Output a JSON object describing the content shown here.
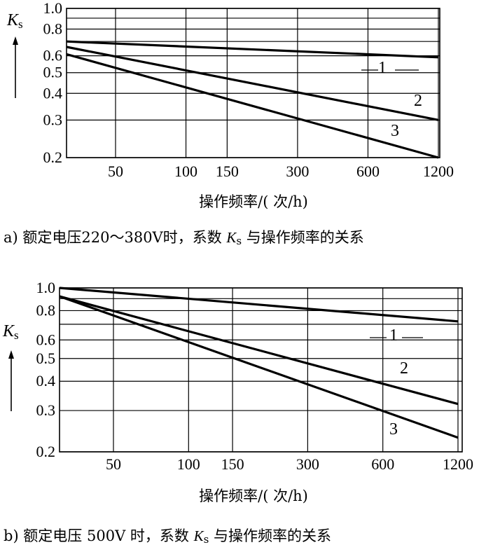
{
  "chart_data": [
    {
      "type": "line",
      "panel": "a",
      "caption": "a) 额定电压220～380V时，系数 Ks 与操作频率的关系",
      "caption_prefix": "a) 额定电压220～380V时，系数 ",
      "caption_suffix": " 与操作频率的关系",
      "ylabel_main": "K",
      "ylabel_sub": "s",
      "xlabel": "操作频率/( 次/h)",
      "x_scale": "log",
      "y_scale": "log",
      "x_ticks": [
        50,
        100,
        150,
        300,
        600,
        1200
      ],
      "x_tick_labels": [
        "50",
        "100",
        "150",
        "300",
        "600",
        "1200"
      ],
      "y_ticks": [
        0.2,
        0.3,
        0.4,
        0.5,
        0.6,
        0.8,
        1.0
      ],
      "y_tick_labels": [
        "0.2",
        "0.3",
        "0.4",
        "0.5",
        "0.6",
        "0.8",
        "1.0"
      ],
      "grid": true,
      "series": [
        {
          "name": "1",
          "x": [
            27,
            1200
          ],
          "values": [
            0.7,
            0.59
          ]
        },
        {
          "name": "2",
          "x": [
            27,
            1200
          ],
          "values": [
            0.66,
            0.3
          ]
        },
        {
          "name": "3",
          "x": [
            27,
            1200
          ],
          "values": [
            0.61,
            0.2
          ]
        }
      ]
    },
    {
      "type": "line",
      "panel": "b",
      "caption": "b) 额定电压 500V 时，系数 Ks 与操作频率的关系",
      "caption_prefix": "b) 额定电压 500V 时，系数 ",
      "caption_suffix": " 与操作频率的关系",
      "ylabel_main": "K",
      "ylabel_sub": "s",
      "xlabel": "操作频率/( 次/h)",
      "x_scale": "log",
      "y_scale": "log",
      "x_ticks": [
        50,
        100,
        150,
        300,
        600,
        1200
      ],
      "x_tick_labels": [
        "50",
        "100",
        "150",
        "300",
        "600",
        "1200"
      ],
      "y_ticks": [
        0.2,
        0.3,
        0.4,
        0.5,
        0.6,
        0.8,
        1.0
      ],
      "y_tick_labels": [
        "0.2",
        "0.3",
        "0.4",
        "0.5",
        "0.6",
        "0.8",
        "1.0"
      ],
      "grid": true,
      "series": [
        {
          "name": "1",
          "x": [
            24,
            1200
          ],
          "values": [
            1.0,
            0.72
          ]
        },
        {
          "name": "2",
          "x": [
            24,
            1200
          ],
          "values": [
            0.92,
            0.32
          ]
        },
        {
          "name": "3",
          "x": [
            24,
            1200
          ],
          "values": [
            0.92,
            0.23
          ]
        }
      ]
    }
  ]
}
